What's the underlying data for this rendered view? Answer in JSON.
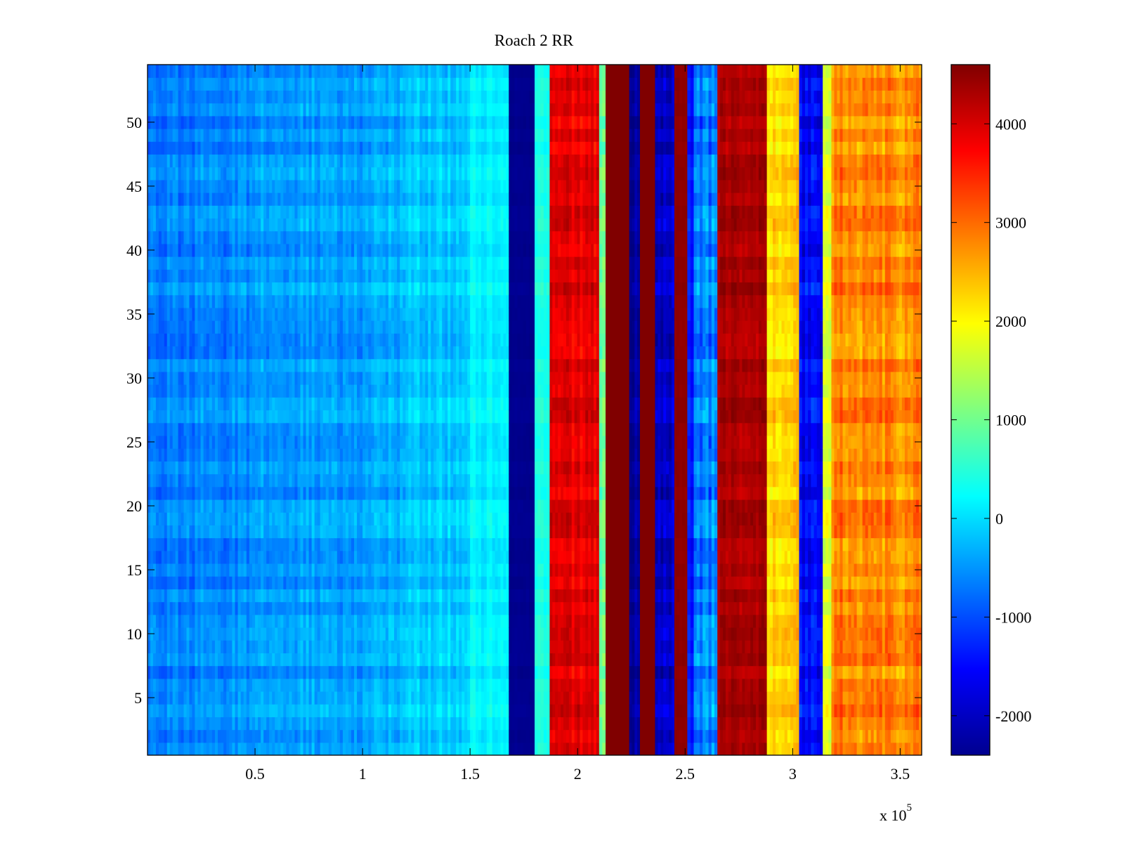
{
  "chart_data": {
    "type": "heatmap",
    "title": "Roach 2 RR",
    "xlabel": "",
    "ylabel": "",
    "x_exponent_label": "x 10",
    "x_exponent_power": "5",
    "xlim": [
      0,
      360000
    ],
    "ylim": [
      0.5,
      54.5
    ],
    "x_ticks": [
      {
        "value": 50000,
        "label": "0.5"
      },
      {
        "value": 100000,
        "label": "1"
      },
      {
        "value": 150000,
        "label": "1.5"
      },
      {
        "value": 200000,
        "label": "2"
      },
      {
        "value": 250000,
        "label": "2.5"
      },
      {
        "value": 300000,
        "label": "3"
      },
      {
        "value": 350000,
        "label": "3.5"
      }
    ],
    "y_ticks": [
      {
        "value": 5,
        "label": "5"
      },
      {
        "value": 10,
        "label": "10"
      },
      {
        "value": 15,
        "label": "15"
      },
      {
        "value": 20,
        "label": "20"
      },
      {
        "value": 25,
        "label": "25"
      },
      {
        "value": 30,
        "label": "30"
      },
      {
        "value": 35,
        "label": "35"
      },
      {
        "value": 40,
        "label": "40"
      },
      {
        "value": 45,
        "label": "45"
      },
      {
        "value": 50,
        "label": "50"
      }
    ],
    "colorbar": {
      "clim": [
        -2400,
        4600
      ],
      "colormap": "jet",
      "ticks": [
        {
          "value": -2000,
          "label": "-2000"
        },
        {
          "value": -1000,
          "label": "-1000"
        },
        {
          "value": 0,
          "label": "0"
        },
        {
          "value": 1000,
          "label": "1000"
        },
        {
          "value": 2000,
          "label": "2000"
        },
        {
          "value": 3000,
          "label": "3000"
        },
        {
          "value": 4000,
          "label": "4000"
        }
      ]
    },
    "rows": 54,
    "column_bands": [
      {
        "x_start": 0,
        "x_end": 22000,
        "base": -700,
        "noise": 500
      },
      {
        "x_start": 22000,
        "x_end": 50000,
        "base": -600,
        "noise": 500
      },
      {
        "x_start": 50000,
        "x_end": 100000,
        "base": -450,
        "noise": 500
      },
      {
        "x_start": 100000,
        "x_end": 120000,
        "base": -300,
        "noise": 500
      },
      {
        "x_start": 120000,
        "x_end": 150000,
        "base": -150,
        "noise": 450
      },
      {
        "x_start": 150000,
        "x_end": 168000,
        "base": 150,
        "noise": 350
      },
      {
        "x_start": 168000,
        "x_end": 180000,
        "base": -2300,
        "noise": 100
      },
      {
        "x_start": 180000,
        "x_end": 187000,
        "base": 400,
        "noise": 300
      },
      {
        "x_start": 187000,
        "x_end": 210000,
        "base": 3900,
        "noise": 500
      },
      {
        "x_start": 210000,
        "x_end": 213000,
        "base": 1000,
        "noise": 600
      },
      {
        "x_start": 213000,
        "x_end": 224000,
        "base": 4600,
        "noise": 0
      },
      {
        "x_start": 224000,
        "x_end": 229000,
        "base": -2200,
        "noise": 400
      },
      {
        "x_start": 229000,
        "x_end": 236000,
        "base": 4600,
        "noise": 0
      },
      {
        "x_start": 236000,
        "x_end": 245000,
        "base": -1900,
        "noise": 600
      },
      {
        "x_start": 245000,
        "x_end": 251000,
        "base": 4500,
        "noise": 100
      },
      {
        "x_start": 251000,
        "x_end": 254000,
        "base": -1400,
        "noise": 400
      },
      {
        "x_start": 254000,
        "x_end": 265000,
        "base": -600,
        "noise": 800
      },
      {
        "x_start": 265000,
        "x_end": 288000,
        "base": 4300,
        "noise": 400
      },
      {
        "x_start": 288000,
        "x_end": 303000,
        "base": 2300,
        "noise": 600
      },
      {
        "x_start": 303000,
        "x_end": 314000,
        "base": -1500,
        "noise": 700
      },
      {
        "x_start": 314000,
        "x_end": 318000,
        "base": 1800,
        "noise": 600
      },
      {
        "x_start": 318000,
        "x_end": 360000,
        "base": 2800,
        "noise": 700
      }
    ]
  }
}
